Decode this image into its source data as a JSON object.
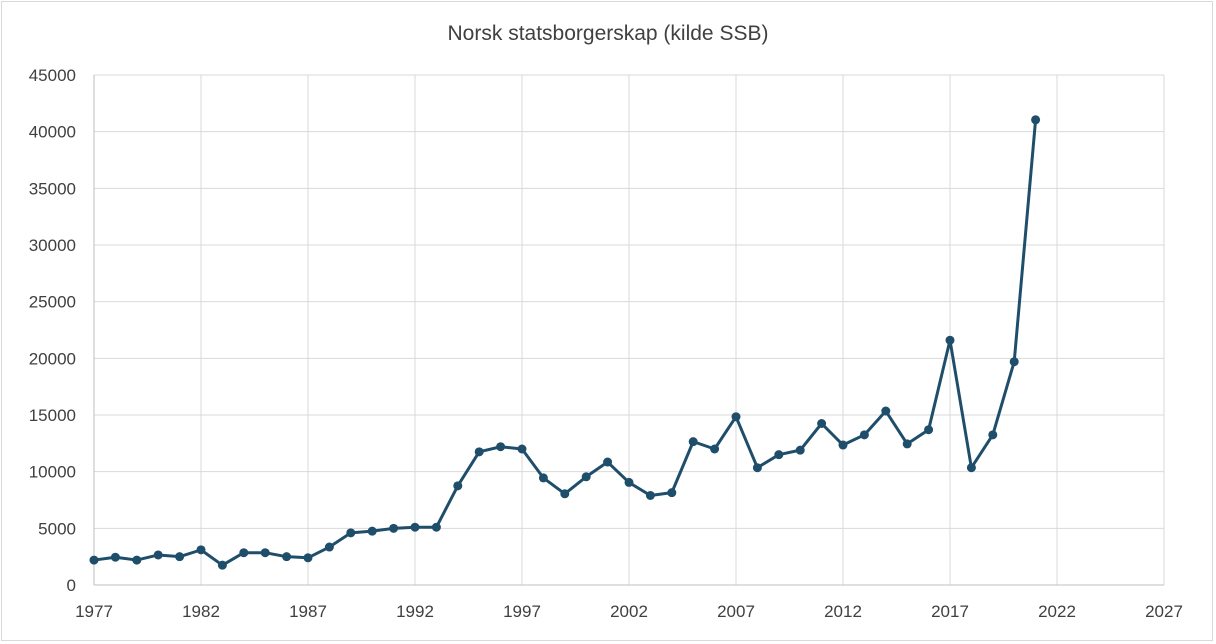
{
  "chart_data": {
    "type": "line",
    "title": "Norsk statsborgerskap (kilde SSB)",
    "xlabel": "",
    "ylabel": "",
    "xlim": [
      1977,
      2027
    ],
    "ylim": [
      0,
      45000
    ],
    "x_ticks": [
      "1977",
      "1982",
      "1987",
      "1992",
      "1997",
      "2002",
      "2007",
      "2012",
      "2017",
      "2022",
      "2027"
    ],
    "y_ticks": [
      "0",
      "5000",
      "10000",
      "15000",
      "20000",
      "25000",
      "30000",
      "35000",
      "40000",
      "45000"
    ],
    "grid": true,
    "legend": "none",
    "series": [
      {
        "color": "#1f4e6b",
        "marker": "circle",
        "x": [
          1977,
          1978,
          1979,
          1980,
          1981,
          1982,
          1983,
          1984,
          1985,
          1986,
          1987,
          1988,
          1989,
          1990,
          1991,
          1992,
          1993,
          1994,
          1995,
          1996,
          1997,
          1998,
          1999,
          2000,
          2001,
          2002,
          2003,
          2004,
          2005,
          2006,
          2007,
          2008,
          2009,
          2010,
          2011,
          2012,
          2013,
          2014,
          2015,
          2016,
          2017,
          2018,
          2019,
          2020,
          2021
        ],
        "y": [
          2200,
          2450,
          2200,
          2650,
          2500,
          3100,
          1750,
          2850,
          2850,
          2500,
          2400,
          3350,
          4600,
          4750,
          5000,
          5100,
          5100,
          8750,
          11750,
          12200,
          12000,
          9450,
          8050,
          9550,
          10850,
          9050,
          7900,
          8150,
          12650,
          12000,
          14850,
          10350,
          11500,
          11900,
          14250,
          12350,
          13250,
          15350,
          12450,
          13700,
          21600,
          10350,
          13250,
          19700,
          41050
        ]
      }
    ]
  }
}
